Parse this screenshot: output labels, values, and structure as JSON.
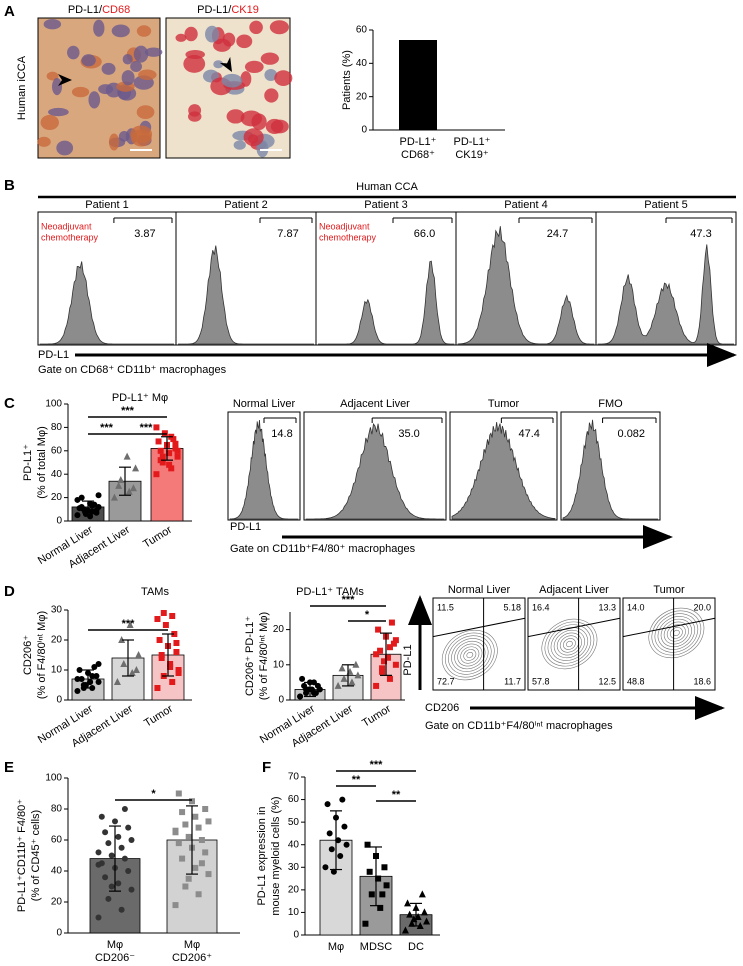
{
  "figure": {
    "panel_labels": [
      "A",
      "B",
      "C",
      "D",
      "E",
      "F"
    ],
    "panel_a": {
      "y_label": "Human iCCA",
      "images": [
        {
          "title": [
            "PD-L1/",
            "CD68"
          ]
        },
        {
          "title": [
            "PD-L1/",
            "CK19"
          ]
        }
      ]
    },
    "panel_b": {
      "title": "Human CCA",
      "patients": [
        {
          "label": "Patient 1",
          "gate": "3.87",
          "note": [
            "Neoadjuvant",
            "chemotherapy"
          ]
        },
        {
          "label": "Patient 2",
          "gate": "7.87"
        },
        {
          "label": "Patient 3",
          "gate": "66.0",
          "note": [
            "Neoadjuvant",
            "chemotherapy"
          ]
        },
        {
          "label": "Patient 4",
          "gate": "24.7"
        },
        {
          "label": "Patient 5",
          "gate": "47.3"
        }
      ],
      "axis": "PD-L1",
      "gate_note": "Gate on CD68⁺ CD11b⁺ macrophages"
    },
    "panel_c": {
      "samples": [
        {
          "label": "Normal Liver",
          "gate": "14.8"
        },
        {
          "label": "Adjacent Liver",
          "gate": "35.0"
        },
        {
          "label": "Tumor",
          "gate": "47.4"
        },
        {
          "label": "FMO",
          "gate": "0.082"
        }
      ],
      "axis": "PD-L1",
      "gate_note": "Gate on CD11b⁺F4/80⁺ macrophages"
    },
    "panel_d": {
      "samples": [
        {
          "label": "Normal Liver",
          "quadrants": [
            "11.5",
            "5.18",
            "72.7",
            "11.7"
          ]
        },
        {
          "label": "Adjacent Liver",
          "quadrants": [
            "16.4",
            "13.3",
            "57.8",
            "12.5"
          ]
        },
        {
          "label": "Tumor",
          "quadrants": [
            "14.0",
            "20.0",
            "48.8",
            "18.6"
          ]
        }
      ],
      "y_axis": "PD-L1",
      "x_axis": "CD206",
      "gate_note": "Gate on CD11b⁺F4/80ⁱⁿᵗ macrophages"
    }
  },
  "chart_data": [
    {
      "type": "bar",
      "y_label": [
        "Patients (%)"
      ],
      "categories": [
        [
          "PD-L1⁺",
          "CD68⁺"
        ],
        [
          "PD-L1⁺",
          "CK19⁺"
        ]
      ],
      "values": [
        54,
        0
      ],
      "colors": [
        "#000000",
        "#000000"
      ],
      "ylim": [
        0,
        60
      ],
      "yticks": [
        0,
        20,
        40,
        60
      ]
    },
    {
      "type": "bar",
      "title": "PD-L1⁺ Mφ",
      "y_label": [
        "PD-L1⁺",
        "(% of total Mφ)"
      ],
      "categories": [
        "Normal Liver",
        "Adjacent Liver",
        "Tumor"
      ],
      "values": [
        12,
        34,
        62
      ],
      "errors": [
        5,
        12,
        10
      ],
      "colors": [
        "#4d4d4d",
        "#9a9a9a",
        "#f47a7a"
      ],
      "point_colors": [
        "#000000",
        "#6e6e6e",
        "#e31a1c"
      ],
      "markers": [
        "circle",
        "triangle",
        "square"
      ],
      "points": [
        [
          5,
          8,
          10,
          12,
          15,
          20,
          7,
          9,
          11,
          14,
          6,
          18,
          13,
          10,
          22,
          4,
          12,
          9
        ],
        [
          20,
          25,
          35,
          45,
          55,
          30,
          28
        ],
        [
          40,
          45,
          50,
          55,
          58,
          60,
          62,
          65,
          68,
          70,
          75,
          80,
          72,
          55,
          60,
          48,
          52,
          66
        ]
      ],
      "significance": [
        {
          "between": [
            0,
            2
          ],
          "label": "***"
        },
        {
          "between": [
            0,
            1
          ],
          "label": "***"
        },
        {
          "between": [
            1,
            2
          ],
          "label": "***"
        }
      ],
      "ylim": [
        0,
        100
      ],
      "yticks": [
        0,
        20,
        40,
        60,
        80,
        100
      ]
    },
    {
      "type": "bar",
      "title": "TAMs",
      "y_label": [
        "CD206⁺",
        "(% of F4/80ⁱⁿᵗ Mφ)"
      ],
      "categories": [
        "Normal Liver",
        "Adjacent Liver",
        "Tumor"
      ],
      "values": [
        7,
        14,
        15
      ],
      "errors": [
        3,
        6,
        7
      ],
      "colors": [
        "#c8c8c8",
        "#d8d8d8",
        "#f6c4c4"
      ],
      "point_colors": [
        "#000000",
        "#6e6e6e",
        "#e31a1c"
      ],
      "markers": [
        "circle",
        "triangle",
        "square"
      ],
      "points": [
        [
          3,
          4,
          5,
          6,
          6,
          7,
          8,
          9,
          10,
          11,
          5,
          7,
          8,
          4,
          12,
          6
        ],
        [
          6,
          9,
          12,
          15,
          25,
          20,
          10
        ],
        [
          4,
          6,
          8,
          10,
          12,
          14,
          16,
          18,
          20,
          22,
          25,
          27,
          28,
          29,
          9,
          11,
          15,
          19
        ]
      ],
      "significance": [
        {
          "between": [
            0,
            2
          ],
          "label": "***"
        }
      ],
      "ylim": [
        0,
        30
      ],
      "yticks": [
        0,
        10,
        20,
        30
      ]
    },
    {
      "type": "bar",
      "title": "PD-L1⁺ TAMs",
      "y_label": [
        "CD206⁺ PD-L1⁺",
        "(% of F4/80ⁱⁿᵗ Mφ)"
      ],
      "categories": [
        "Normal Liver",
        "Adjacent Liver",
        "Tumor"
      ],
      "values": [
        3,
        7,
        13
      ],
      "errors": [
        2,
        3,
        6
      ],
      "colors": [
        "#c8c8c8",
        "#d8d8d8",
        "#f6c4c4"
      ],
      "point_colors": [
        "#000000",
        "#6e6e6e",
        "#e31a1c"
      ],
      "markers": [
        "circle",
        "triangle",
        "square"
      ],
      "points": [
        [
          1,
          2,
          2,
          3,
          3,
          4,
          4,
          5,
          6,
          2,
          3,
          1,
          5,
          3
        ],
        [
          4,
          5,
          6,
          7,
          8,
          9,
          10
        ],
        [
          4,
          6,
          8,
          10,
          12,
          14,
          16,
          18,
          20,
          22,
          11,
          13,
          15,
          9,
          17
        ]
      ],
      "significance": [
        {
          "between": [
            0,
            2
          ],
          "label": "***"
        },
        {
          "between": [
            1,
            2
          ],
          "label": "*"
        }
      ],
      "ylim": [
        0,
        25
      ],
      "yticks": [
        0,
        10,
        20
      ]
    },
    {
      "type": "bar",
      "y_label": [
        "PD-L1⁺CD11b⁺ F4/80⁺",
        "(% of CD45⁺ cells)"
      ],
      "categories": [
        [
          "Mφ",
          "CD206⁻"
        ],
        [
          "Mφ",
          "CD206⁺"
        ]
      ],
      "values": [
        48,
        60
      ],
      "errors": [
        21,
        22
      ],
      "colors": [
        "#6a6a6a",
        "#d2d2d2"
      ],
      "point_colors": [
        "#333333",
        "#8c8c8c"
      ],
      "markers": [
        "circle",
        "square"
      ],
      "points": [
        [
          10,
          15,
          22,
          28,
          32,
          36,
          40,
          42,
          45,
          48,
          50,
          52,
          55,
          58,
          60,
          62,
          65,
          68,
          72,
          75,
          80,
          30,
          44
        ],
        [
          18,
          25,
          30,
          38,
          42,
          48,
          52,
          55,
          58,
          60,
          62,
          65,
          68,
          70,
          72,
          75,
          78,
          80,
          85,
          90,
          45,
          35,
          66
        ]
      ],
      "significance": [
        {
          "between": [
            0,
            1
          ],
          "label": "*"
        }
      ],
      "ylim": [
        0,
        100
      ],
      "yticks": [
        0,
        20,
        40,
        60,
        80,
        100
      ]
    },
    {
      "type": "bar",
      "y_label": [
        "PD-L1 expression in",
        "mouse myeloid cells (%)"
      ],
      "categories": [
        "Mφ",
        "MDSC",
        "DC"
      ],
      "values": [
        42,
        26,
        9
      ],
      "errors": [
        13,
        13,
        5
      ],
      "colors": [
        "#d8d8d8",
        "#9a9a9a",
        "#6a6a6a"
      ],
      "point_colors": [
        "#000000",
        "#000000",
        "#000000"
      ],
      "markers": [
        "circle",
        "square",
        "triangle"
      ],
      "points": [
        [
          30,
          35,
          38,
          40,
          42,
          45,
          48,
          52,
          58,
          60,
          28
        ],
        [
          5,
          12,
          18,
          22,
          25,
          28,
          30,
          35,
          40,
          18
        ],
        [
          2,
          4,
          5,
          6,
          8,
          9,
          10,
          12,
          14,
          18,
          7
        ]
      ],
      "significance": [
        {
          "between": [
            0,
            2
          ],
          "label": "***"
        },
        {
          "between": [
            0,
            1
          ],
          "label": "**"
        },
        {
          "between": [
            1,
            2
          ],
          "label": "**"
        }
      ],
      "ylim": [
        0,
        70
      ],
      "yticks": [
        0,
        10,
        20,
        30,
        40,
        50,
        60,
        70
      ]
    }
  ]
}
